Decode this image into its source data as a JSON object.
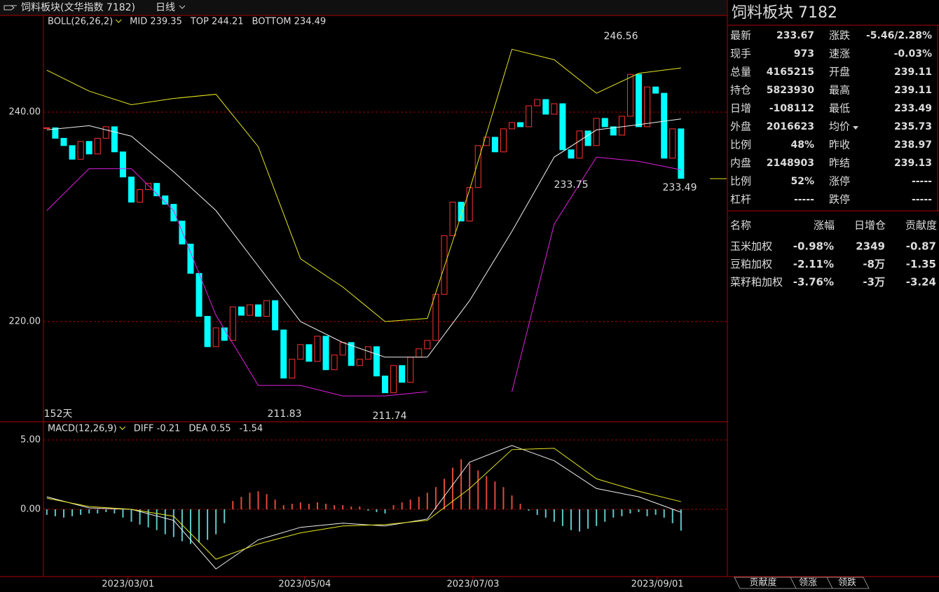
{
  "header": {
    "title": "饲料板块(文华指数 7182)",
    "period": "日线"
  },
  "chart_data": [
    {
      "type": "candlestick",
      "legend": [
        "BOLL(26,26,2)",
        "MID 239.35",
        "TOP 244.21",
        "BOTTOM 234.49"
      ],
      "up_color": "#ff3232",
      "down_color": "#00ffff",
      "values": [
        238.5,
        237.5,
        236.8,
        235.5,
        237.2,
        236,
        237.5,
        238.6,
        236.2,
        233.8,
        231.4,
        232.6,
        233.2,
        232,
        231.2,
        229.6,
        227.4,
        224.6,
        220.5,
        217.6,
        219.4,
        218.2,
        221.4,
        220.6,
        221.6,
        220.5,
        222,
        219.2,
        214.6,
        216.4,
        217.8,
        216.2,
        218.6,
        215.4,
        216.8,
        218,
        215.8,
        216.4,
        217.6,
        214.8,
        213.2,
        215.8,
        214.2,
        216.6,
        217.4,
        218.2,
        222.6,
        228.2,
        231.4,
        229.6,
        232.8,
        236.8,
        237.6,
        236.2,
        238.4,
        239,
        238.6,
        240.6,
        241.2,
        239.8,
        240.8,
        236.4,
        235.6,
        238.2,
        236.8,
        239.4,
        238.6,
        237.8,
        239.6,
        243.6,
        238.6,
        242.4,
        241.8,
        235.6,
        238.4,
        233.67
      ],
      "bands": [
        {
          "name": "TOP",
          "color": "#e6e620",
          "x": [
            0,
            5,
            10,
            15,
            20,
            25,
            30,
            35,
            40,
            45,
            50,
            55,
            60,
            65,
            70,
            75
          ],
          "values": [
            244,
            242,
            240.7,
            241.3,
            241.7,
            236.7,
            226,
            223.3,
            220,
            220.3,
            232.6,
            246,
            245,
            241.8,
            243.7,
            244.21
          ]
        },
        {
          "name": "MID",
          "color": "#f0f0f0",
          "x": [
            0,
            5,
            10,
            15,
            20,
            25,
            30,
            35,
            40,
            45,
            50,
            55,
            60,
            65,
            70,
            75
          ],
          "values": [
            238.3,
            238.7,
            237.7,
            234.3,
            230.6,
            225.3,
            220,
            218,
            216.6,
            216.6,
            222,
            228.6,
            235.7,
            238.3,
            238.8,
            239.35
          ]
        },
        {
          "name": "BOTTOM",
          "color": "#e020e0",
          "x": [
            0,
            5,
            10,
            15,
            20,
            25,
            30,
            35,
            40,
            45,
            50,
            55,
            60,
            65,
            70,
            75
          ],
          "values": [
            230.6,
            234.6,
            234.6,
            230.6,
            220.6,
            213.9,
            213.9,
            212.9,
            212.9,
            213.3,
            null,
            213.3,
            229.3,
            235.7,
            235.3,
            234.49
          ]
        }
      ],
      "annotations": [
        {
          "text": "246.56",
          "color": "#ff4040"
        },
        {
          "text": "233.75",
          "color": "#20e0f0"
        },
        {
          "text": "233.49",
          "color": "#20e0f0"
        },
        {
          "text": "211.83",
          "color": "#20e0f0"
        },
        {
          "text": "211.74",
          "color": "#20e0f0"
        },
        {
          "text": "152天",
          "color": "#e6e620"
        }
      ],
      "xlim": [
        -0.4,
        80.4
      ],
      "ylim": [
        210.5,
        249.23
      ],
      "yticks": [
        {
          "value": 240,
          "label": "240.00"
        },
        {
          "value": 220,
          "label": "220.00"
        }
      ],
      "xticks": [
        {
          "value": 9.6,
          "label": "2023/03/01"
        },
        {
          "value": 30.5,
          "label": "2023/05/04"
        },
        {
          "value": 50.4,
          "label": "2023/07/03"
        },
        {
          "value": 72.2,
          "label": "2023/09/01"
        }
      ]
    },
    {
      "type": "macd",
      "legend": [
        "MACD(12,26,9)",
        "DIFF -0.21",
        "DEA 0.55",
        "-1.54"
      ],
      "xlim": [
        -0.4,
        80.4
      ],
      "ylim": [
        -4.85,
        6.26
      ],
      "yticks": [
        {
          "value": 5,
          "label": "5.00"
        },
        {
          "value": 0,
          "label": "0.00"
        }
      ],
      "hist": [
        -0.4,
        -0.5,
        -0.6,
        -0.5,
        -0.4,
        -0.3,
        -0.3,
        -0.2,
        -0.3,
        -0.6,
        -0.9,
        -1.1,
        -1.3,
        -1.5,
        -1.8,
        -2.0,
        -2.3,
        -2.5,
        -2.4,
        -2.2,
        -1.8,
        -1.0,
        0.6,
        0.9,
        1.2,
        1.3,
        1.1,
        0.7,
        0.3,
        0.4,
        0.5,
        0.4,
        0.5,
        0.4,
        0.3,
        0.3,
        0.2,
        0.2,
        -0.1,
        -0.2,
        -0.3,
        0.3,
        0.5,
        0.7,
        0.9,
        1.2,
        1.6,
        2.2,
        3.0,
        3.6,
        3.3,
        2.8,
        2.4,
        2.0,
        1.6,
        1.0,
        0.4,
        -0.1,
        -0.4,
        -0.6,
        -0.9,
        -1.2,
        -1.5,
        -1.6,
        -1.4,
        -1.2,
        -0.9,
        -0.6,
        -0.5,
        -0.3,
        -0.2,
        -0.5,
        -0.4,
        -0.6,
        -1.0,
        -1.54
      ],
      "hist_up_color": "#e04a3a",
      "hist_down_color": "#60c8c8",
      "series": [
        {
          "name": "DIFF",
          "color": "#f0f0f0",
          "x": [
            0,
            5,
            10,
            15,
            20,
            25,
            30,
            35,
            40,
            45,
            50,
            55,
            60,
            65,
            70,
            75
          ],
          "values": [
            0.9,
            0.1,
            0,
            -0.8,
            -4.3,
            -2.2,
            -1.3,
            -1.0,
            -1.2,
            -0.7,
            3.4,
            4.6,
            3.5,
            1.5,
            0.9,
            -0.21
          ]
        },
        {
          "name": "DEA",
          "color": "#e6e620",
          "x": [
            0,
            5,
            10,
            15,
            20,
            25,
            30,
            35,
            40,
            45,
            50,
            55,
            60,
            65,
            70,
            75
          ],
          "values": [
            0.8,
            0.2,
            0,
            -0.5,
            -3.6,
            -2.5,
            -1.7,
            -1.2,
            -1.1,
            -0.8,
            1.5,
            4.3,
            4.4,
            2.2,
            1.3,
            0.55
          ]
        }
      ]
    }
  ],
  "quote": {
    "title": "饲料板块  7182",
    "left": [
      {
        "label": "最新",
        "value": "233.67",
        "color": "#30e030"
      },
      {
        "label": "现手",
        "value": "973",
        "color": "#f0e020"
      },
      {
        "label": "总量",
        "value": "4165215",
        "color": "#f0e020"
      },
      {
        "label": "持仓",
        "value": "5823930",
        "color": "#f0e020"
      },
      {
        "label": "日增",
        "value": "-108112",
        "color": "#f0e020"
      },
      {
        "label": "外盘",
        "value": "2016623",
        "color": "#f0e020"
      },
      {
        "label": "比例",
        "value": "48%",
        "color": "#f0e020"
      },
      {
        "label": "内盘",
        "value": "2148903",
        "color": "#f0e020"
      },
      {
        "label": "比例",
        "value": "52%",
        "color": "#f0e020"
      },
      {
        "label": "杠杆",
        "value": "-----",
        "color": "#f0e020"
      }
    ],
    "right": [
      {
        "label": "涨跌",
        "value": "-5.46/2.28%",
        "color": "#30e030"
      },
      {
        "label": "速涨",
        "value": "-0.03%",
        "color": "#30e030"
      },
      {
        "label": "开盘",
        "value": "239.11",
        "color": "#30e030"
      },
      {
        "label": "最高",
        "value": "239.11",
        "color": "#30e030"
      },
      {
        "label": "最低",
        "value": "233.49",
        "color": "#30e030"
      },
      {
        "label": "均价",
        "value": "235.73",
        "color": "#30e030"
      },
      {
        "label": "昨收",
        "value": "238.97",
        "color": "#ffffff"
      },
      {
        "label": "昨结",
        "value": "239.13",
        "color": "#ffffff"
      },
      {
        "label": "涨停",
        "value": "-----",
        "color": "#ff3030"
      },
      {
        "label": "跌停",
        "value": "-----",
        "color": "#30e030"
      }
    ]
  },
  "components": {
    "columns": [
      "名称",
      "涨幅",
      "日增仓",
      "贡献度"
    ],
    "rows": [
      [
        "玉米加权",
        "-0.98%",
        "2349",
        "-0.87"
      ],
      [
        "豆粕加权",
        "-2.11%",
        "-8万",
        "-1.35"
      ],
      [
        "菜籽粕加权",
        "-3.76%",
        "-3万",
        "-3.24"
      ]
    ]
  },
  "tabs": [
    "贡献度",
    "领涨",
    "领跌"
  ]
}
